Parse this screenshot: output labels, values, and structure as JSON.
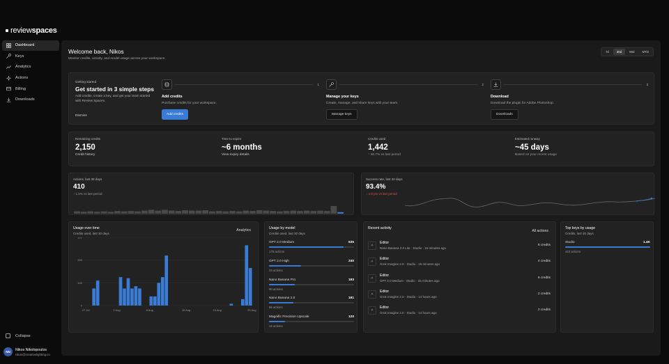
{
  "app": {
    "logo_light": "review",
    "logo_bold": "spaces"
  },
  "sidebar": {
    "items": [
      {
        "label": "Dashboard",
        "icon": "grid-icon",
        "active": true
      },
      {
        "label": "Keys",
        "icon": "key-icon"
      },
      {
        "label": "Analytics",
        "icon": "analytics-icon"
      },
      {
        "label": "Actions",
        "icon": "sparkle-icon"
      },
      {
        "label": "Billing",
        "icon": "card-icon"
      },
      {
        "label": "Downloads",
        "icon": "download-icon"
      }
    ],
    "collapse": "Collapse"
  },
  "user": {
    "initials": "NN",
    "name": "Nikos Nikolopoulos",
    "email": "nikos@creativelighting.co"
  },
  "header": {
    "title": "Welcome back, Nikos",
    "subtitle": "Monitor credits, activity, and model usage across your workspace.",
    "ranges": [
      "7d",
      "30d",
      "90d",
      "MTD"
    ],
    "selected_range": "30d"
  },
  "getting_started": {
    "label": "Getting started",
    "title": "Get started in 3 simple steps",
    "description": "Add credits, create a key, and get your team started with Review Spaces.",
    "dismiss": "Dismiss",
    "steps": [
      {
        "num": "1",
        "title": "Add credits",
        "desc": "Purchase credits for your workspace.",
        "button": "Add credits",
        "icon": "database-icon"
      },
      {
        "num": "2",
        "title": "Manage your keys",
        "desc": "Create, manage, and share keys with your team.",
        "button": "Manage keys",
        "icon": "key-icon"
      },
      {
        "num": "3",
        "title": "Download",
        "desc": "Download the plugin for Adobe Photoshop.",
        "button": "Downloads",
        "icon": "download-icon"
      }
    ]
  },
  "metrics": [
    {
      "label": "Remaining credits",
      "value": "2,150",
      "sub": "Credit history"
    },
    {
      "label": "Time to expire",
      "value": "~6 months",
      "sub": "View expiry details"
    },
    {
      "label": "Credits used",
      "value": "1,442",
      "sub": "↑ 36.7% vs last period"
    },
    {
      "label": "Estimated runway",
      "value": "~45 days",
      "sub": "Based on your recent usage"
    }
  ],
  "actions_card": {
    "label": "Actions, last 30 days",
    "value": "410",
    "sub": "↑ 1.5% vs last period",
    "bars": [
      0.12,
      0.1,
      0.12,
      0.1,
      0.12,
      0.1,
      0.14,
      0.12,
      0.14,
      0.12,
      0.16,
      0.2,
      0.16,
      0.2,
      0.16,
      0.14,
      0.18,
      0.16,
      0.16,
      0.18,
      0.12,
      0.14,
      0.12,
      0.14,
      0.12,
      0.16,
      0.14,
      0.18,
      0.16,
      0.14,
      0.12,
      0.14,
      0.16,
      0.14,
      0.16,
      0.14,
      0.16,
      0.14,
      0.4,
      0.08
    ]
  },
  "success_card": {
    "label": "Success rate, last 30 days",
    "value": "93.4%",
    "sub": "↓ 4.8 pts vs last period"
  },
  "usage_chart": {
    "title": "Usage over time",
    "subtitle": "Credits used, last 30 days",
    "link": "Analytics"
  },
  "chart_data": {
    "type": "bar",
    "ylim": [
      0,
      300
    ],
    "yticks": [
      "0",
      "100",
      "200",
      "300"
    ],
    "xticks": [
      "27 Jul",
      "2 Aug",
      "8 Aug",
      "15 Aug",
      "19 Aug",
      "25 Aug"
    ],
    "values": [
      0,
      0,
      75,
      110,
      0,
      0,
      0,
      0,
      0,
      125,
      75,
      120,
      75,
      85,
      75,
      0,
      0,
      40,
      40,
      100,
      125,
      220,
      0,
      0,
      0,
      0,
      0,
      0,
      0,
      0,
      0,
      0,
      0,
      0,
      0,
      0,
      0,
      0,
      8,
      0,
      0,
      28,
      265,
      165
    ]
  },
  "models": {
    "title": "Usage by model",
    "subtitle": "Credits used, last 30 days",
    "items": [
      {
        "name": "GPT 2.0 Medium",
        "value": "635",
        "frac": 0.88,
        "actions": "176 actions"
      },
      {
        "name": "GPT 2.0 High",
        "value": "240",
        "frac": 0.38,
        "actions": "33 actions"
      },
      {
        "name": "Nano Banana Pro",
        "value": "183",
        "frac": 0.3,
        "actions": "60 actions"
      },
      {
        "name": "Nano Banana 2.0",
        "value": "181",
        "frac": 0.29,
        "actions": "65 actions"
      },
      {
        "name": "Magnific Precision Upscale",
        "value": "120",
        "frac": 0.19,
        "actions": "14 actions"
      }
    ]
  },
  "recent": {
    "title": "Recent activity",
    "link": "All actions",
    "items": [
      {
        "title": "Editor",
        "desc": "Nano Banana 2.0 Lite · Studio · 16 minutes ago",
        "credits": "6 credits"
      },
      {
        "title": "Editor",
        "desc": "Grok Imagine 2.0 · Studio · 18 minutes ago",
        "credits": "4 credits"
      },
      {
        "title": "Editor",
        "desc": "GPT 2.0 Medium · Studio · 34 minutes ago",
        "credits": "6 credits"
      },
      {
        "title": "Editor",
        "desc": "Grok Imagine 2.0 · Studio · 14 hours ago",
        "credits": "2 credits"
      },
      {
        "title": "Editor",
        "desc": "Grok Imagine 2.0 · Studio · 14 hours ago",
        "credits": "2 credits"
      }
    ]
  },
  "top_keys": {
    "title": "Top keys by usage",
    "subtitle": "Credits, last 30 days",
    "items": [
      {
        "name": "Studio",
        "value": "1.4K",
        "actions": "410 actions",
        "frac": 1.0
      }
    ]
  },
  "colors": {
    "accent": "#3a7bd5",
    "danger": "#e05050"
  }
}
